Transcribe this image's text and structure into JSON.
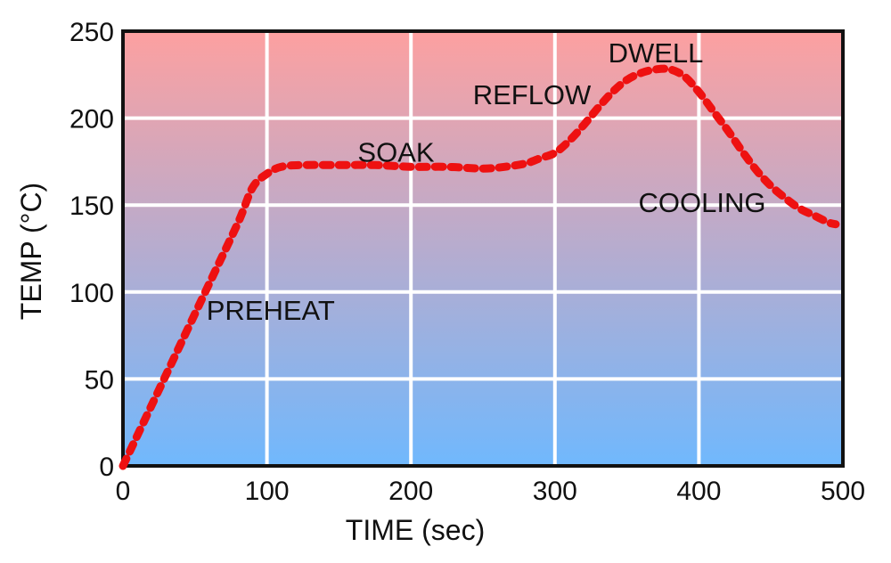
{
  "chart_data": {
    "type": "line",
    "xlabel": "TIME (sec)",
    "ylabel": "TEMP (°C)",
    "xlim": [
      0,
      500
    ],
    "ylim": [
      0,
      250
    ],
    "xticks": [
      0,
      100,
      200,
      300,
      400,
      500
    ],
    "yticks": [
      0,
      50,
      100,
      150,
      200,
      250
    ],
    "grid": true,
    "background_gradient": {
      "top": "#fda0a0",
      "bottom": "#70b8fd"
    },
    "series": [
      {
        "color": "#ee1111",
        "line_style": "dashed",
        "points": [
          [
            0,
            0
          ],
          [
            20,
            35
          ],
          [
            40,
            70
          ],
          [
            60,
            105
          ],
          [
            80,
            140
          ],
          [
            90,
            160
          ],
          [
            100,
            168
          ],
          [
            110,
            172
          ],
          [
            125,
            173
          ],
          [
            150,
            173
          ],
          [
            175,
            173
          ],
          [
            200,
            172
          ],
          [
            225,
            172
          ],
          [
            250,
            171
          ],
          [
            265,
            172
          ],
          [
            280,
            174
          ],
          [
            290,
            177
          ],
          [
            300,
            180
          ],
          [
            310,
            187
          ],
          [
            320,
            196
          ],
          [
            330,
            206
          ],
          [
            340,
            215
          ],
          [
            350,
            222
          ],
          [
            360,
            226
          ],
          [
            370,
            228
          ],
          [
            380,
            228
          ],
          [
            390,
            224
          ],
          [
            400,
            215
          ],
          [
            410,
            204
          ],
          [
            420,
            193
          ],
          [
            430,
            181
          ],
          [
            440,
            170
          ],
          [
            450,
            161
          ],
          [
            460,
            154
          ],
          [
            470,
            148
          ],
          [
            480,
            144
          ],
          [
            490,
            140
          ],
          [
            495,
            139
          ]
        ]
      }
    ],
    "annotations": [
      {
        "text": "PREHEAT",
        "x": 58,
        "y": 84
      },
      {
        "text": "SOAK",
        "x": 163,
        "y": 175
      },
      {
        "text": "REFLOW",
        "x": 243,
        "y": 208
      },
      {
        "text": "DWELL",
        "x": 337,
        "y": 232
      },
      {
        "text": "COOLING",
        "x": 358,
        "y": 146
      }
    ]
  }
}
